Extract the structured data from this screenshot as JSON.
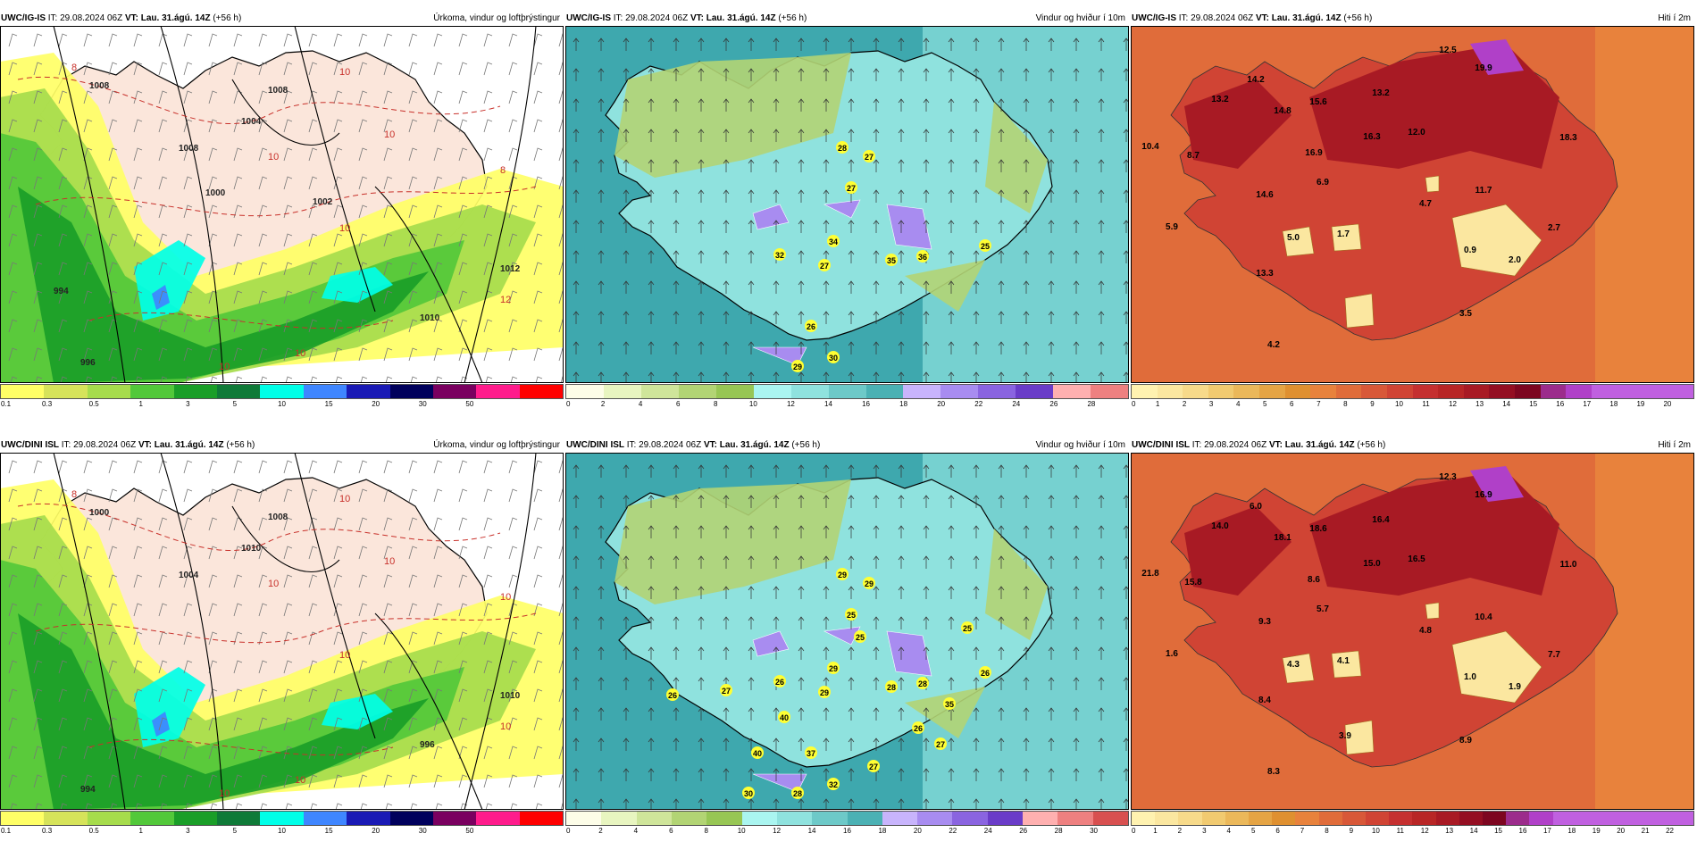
{
  "colors": {
    "precip": [
      "#ffff66",
      "#d6e35a",
      "#a6dc4c",
      "#52c83a",
      "#1a9e28",
      "#0f7a38",
      "#00ffe8",
      "#3f86ff",
      "#1a1ab5",
      "#00005c",
      "#7a0060",
      "#ff1c8c",
      "#ff0000"
    ],
    "wind": [
      "#fdfde8",
      "#e8f5c0",
      "#cfe59a",
      "#b2d474",
      "#97c654",
      "#aaf5f0",
      "#8fe2de",
      "#6dc9c8",
      "#4bb1b4",
      "#c8b4fc",
      "#a88cf0",
      "#8a64e0",
      "#6a3cc8",
      "#ffb0b0",
      "#ee8080",
      "#d85050"
    ],
    "temp": [
      "#fff2b0",
      "#fbe7a0",
      "#f7da8a",
      "#f1ca70",
      "#ebb85a",
      "#e5a444",
      "#df9030",
      "#e8823c",
      "#e06c3a",
      "#d85838",
      "#d04434",
      "#c53030",
      "#b82626",
      "#a81a24",
      "#940e22",
      "#7d0620",
      "#9c2c8c",
      "#b040c8",
      "#c060e0"
    ],
    "sea_wind": "#3ea8ae",
    "land_precip": "#fbe6db"
  },
  "panels": [
    {
      "model": "UWC/IG-IS",
      "it_label": "IT:",
      "it_value": "29.08.2024 06Z",
      "vt_label": "VT:",
      "vt_value": "Lau. 31.ágú. 14Z",
      "lead": "(+56 h)",
      "title": "Úrkoma, vindur og loftþrýstingur",
      "ticks": [
        "0.1",
        "0.3",
        "0.5",
        "1",
        "3",
        "5",
        "10",
        "15",
        "20",
        "30",
        "50"
      ],
      "isobars": [
        "1008",
        "1008",
        "1008",
        "1012",
        "1010",
        "1004",
        "996",
        "994",
        "1000",
        "1002"
      ],
      "temps_850": [
        "8",
        "10",
        "10",
        "10",
        "10",
        "8",
        "10",
        "10",
        "12"
      ]
    },
    {
      "model": "UWC/IG-IS",
      "it_label": "IT:",
      "it_value": "29.08.2024 06Z",
      "vt_label": "VT:",
      "vt_value": "Lau. 31.ágú. 14Z",
      "lead": "(+56 h)",
      "title": "Vindur og hviður í 10m",
      "ticks": [
        "0",
        "2",
        "4",
        "6",
        "8",
        "10",
        "12",
        "14",
        "16",
        "18",
        "20",
        "22",
        "24",
        "26",
        "28"
      ],
      "gusts": [
        "28",
        "27",
        "27",
        "32",
        "34",
        "27",
        "35",
        "36",
        "25",
        "26",
        "30",
        "29"
      ]
    },
    {
      "model": "UWC/IG-IS",
      "it_label": "IT:",
      "it_value": "29.08.2024 06Z",
      "vt_label": "VT:",
      "vt_value": "Lau. 31.ágú. 14Z",
      "lead": "(+56 h)",
      "title": "Hiti í 2m",
      "ticks": [
        "0",
        "1",
        "2",
        "3",
        "4",
        "5",
        "6",
        "7",
        "8",
        "9",
        "10",
        "11",
        "12",
        "13",
        "14",
        "15",
        "16",
        "17",
        "18",
        "19",
        "20"
      ],
      "temps": [
        "12.5",
        "13.2",
        "14.2",
        "14.8",
        "10.4",
        "8.7",
        "15.6",
        "13.2",
        "19.9",
        "16.9",
        "16.3",
        "12.0",
        "18.3",
        "14.6",
        "6.9",
        "11.7",
        "4.7",
        "5.9",
        "5.0",
        "1.7",
        "2.7",
        "0.9",
        "2.0",
        "13.3",
        "3.5",
        "4.2"
      ]
    },
    {
      "model": "UWC/DINI ISL",
      "it_label": "IT:",
      "it_value": "29.08.2024 06Z",
      "vt_label": "VT:",
      "vt_value": "Lau. 31.ágú. 14Z",
      "lead": "(+56 h)",
      "title": "Úrkoma, vindur og loftþrýstingur",
      "ticks": [
        "0.1",
        "0.3",
        "0.5",
        "1",
        "3",
        "5",
        "10",
        "15",
        "20",
        "30",
        "50"
      ],
      "isobars": [
        "1000",
        "1004",
        "1008",
        "1010",
        "996",
        "1010",
        "994"
      ],
      "temps_850": [
        "8",
        "10",
        "10",
        "10",
        "10",
        "10",
        "10",
        "10",
        "10"
      ]
    },
    {
      "model": "UWC/DINI ISL",
      "it_label": "IT:",
      "it_value": "29.08.2024 06Z",
      "vt_label": "VT:",
      "vt_value": "Lau. 31.ágú. 14Z",
      "lead": "(+56 h)",
      "title": "Vindur og hviður í 10m",
      "ticks": [
        "0",
        "2",
        "4",
        "6",
        "8",
        "10",
        "12",
        "14",
        "16",
        "18",
        "20",
        "22",
        "24",
        "26",
        "28",
        "30"
      ],
      "gusts": [
        "29",
        "29",
        "25",
        "26",
        "29",
        "29",
        "28",
        "28",
        "26",
        "37",
        "32",
        "28",
        "40",
        "40",
        "25",
        "27",
        "26",
        "26",
        "27",
        "27",
        "30",
        "35",
        "25"
      ]
    },
    {
      "model": "UWC/DINI ISL",
      "it_label": "IT:",
      "it_value": "29.08.2024 06Z",
      "vt_label": "VT:",
      "vt_value": "Lau. 31.ágú. 14Z",
      "lead": "(+56 h)",
      "title": "Hiti í 2m",
      "ticks": [
        "0",
        "1",
        "2",
        "3",
        "4",
        "5",
        "6",
        "7",
        "8",
        "9",
        "10",
        "11",
        "12",
        "13",
        "14",
        "15",
        "16",
        "17",
        "18",
        "19",
        "20",
        "21",
        "22"
      ],
      "temps": [
        "12.3",
        "14.0",
        "6.0",
        "18.1",
        "21.8",
        "15.8",
        "18.6",
        "16.4",
        "16.9",
        "8.6",
        "15.0",
        "16.5",
        "11.0",
        "9.3",
        "5.7",
        "10.4",
        "4.8",
        "1.6",
        "4.3",
        "4.1",
        "7.7",
        "1.0",
        "1.9",
        "8.4",
        "8.9",
        "8.3",
        "3.9"
      ]
    }
  ]
}
